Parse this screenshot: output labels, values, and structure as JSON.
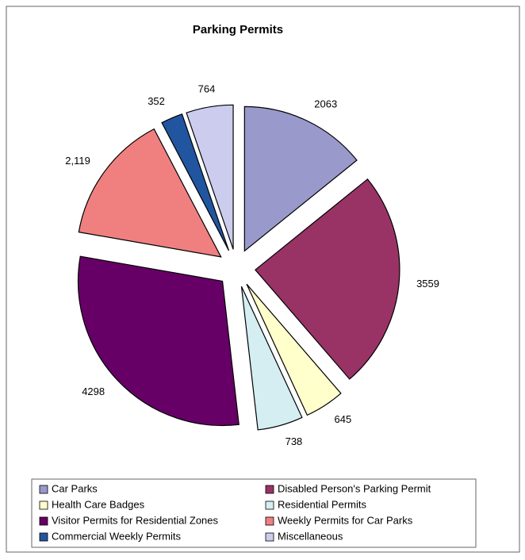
{
  "chart_data": {
    "type": "pie",
    "title": "Parking Permits",
    "categories": [
      "Car Parks",
      "Disabled Person's Parking Permit",
      "Health Care Badges",
      "Residential Permits",
      "Visitor Permits for Residential Zones",
      "Weekly Permits for Car Parks",
      "Commercial Weekly Permits",
      "Miscellaneous"
    ],
    "values": [
      2063,
      3559,
      645,
      738,
      4298,
      2119,
      352,
      764
    ],
    "value_labels": [
      "2063",
      "3559",
      "645",
      "738",
      "4298",
      "2,119",
      "352",
      "764"
    ],
    "colors": [
      "#9999cc",
      "#993366",
      "#ffffcc",
      "#d4eef2",
      "#660066",
      "#f08080",
      "#2255a0",
      "#ccccee"
    ],
    "legend": "bottom"
  }
}
